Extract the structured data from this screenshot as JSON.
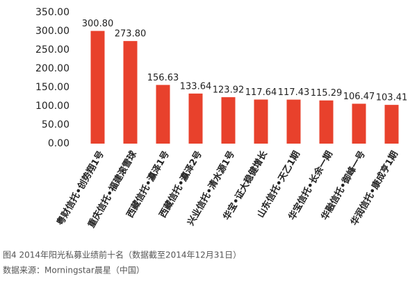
{
  "chart_data": {
    "type": "bar",
    "categories": [
      "粤财信托•创势翔1号",
      "重庆信托•福建滚雪球",
      "西藏信托•瀛泽1号",
      "西藏信托•瀛泽2号",
      "兴业信托•清水源1号",
      "华宝•证大稳健增长",
      "山东信托•天乙1期",
      "华宝信托•长余一期",
      "华融信托•御峰一号",
      "华润信托•康成亨1期"
    ],
    "values": [
      300.8,
      273.8,
      156.63,
      133.64,
      123.92,
      117.64,
      117.43,
      115.29,
      106.47,
      103.41
    ],
    "value_labels": [
      "300.80",
      "273.80",
      "156.63",
      "133.64",
      "123.92",
      "117.64",
      "117.43",
      "115.29",
      "106.47",
      "103.41"
    ],
    "color": "#e8412c",
    "ylim": [
      0,
      350
    ],
    "yticks": [
      {
        "value": 0,
        "label": "0.00"
      },
      {
        "value": 50,
        "label": "50.00"
      },
      {
        "value": 100,
        "label": "100.00"
      },
      {
        "value": 150,
        "label": "150.00"
      },
      {
        "value": 200,
        "label": "200.00"
      },
      {
        "value": 250,
        "label": "250.00"
      },
      {
        "value": 300,
        "label": "300.00"
      },
      {
        "value": 350,
        "label": "350.00"
      }
    ],
    "grid": false,
    "caption": "图4 2014年阳光私募业绩前十名（数据截至2014年12月31日）",
    "source": "数据来源：Morningstar晨星（中国）"
  }
}
